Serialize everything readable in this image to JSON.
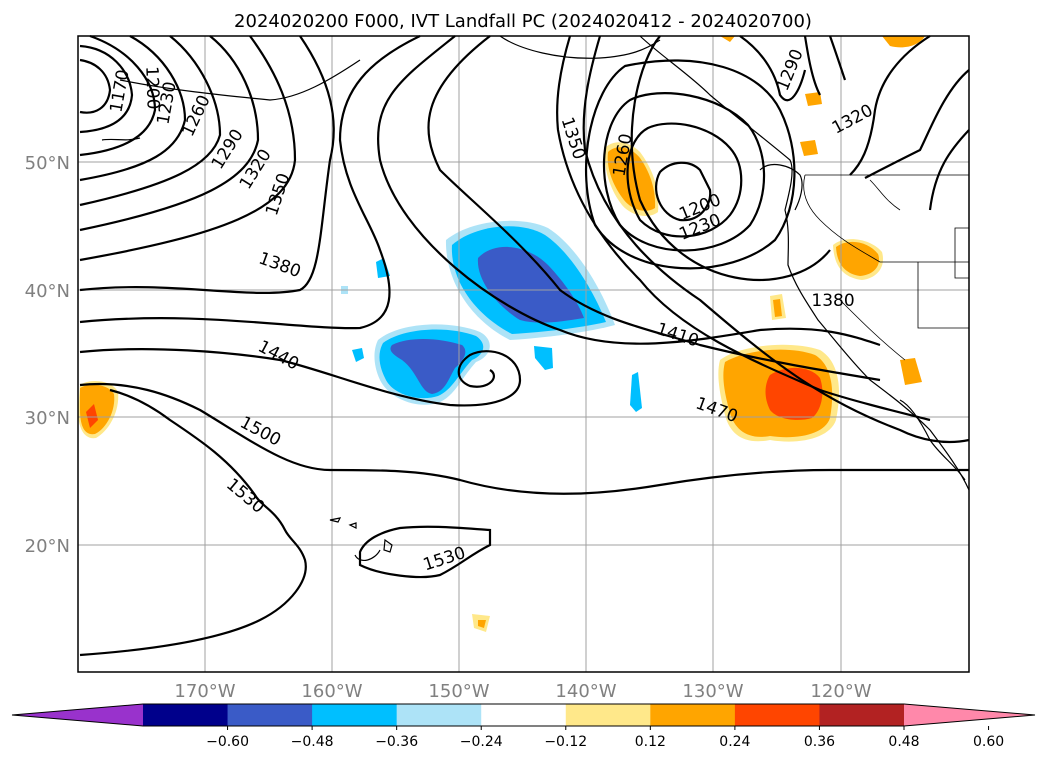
{
  "map": {
    "title": "2024020200 F000, IVT Landfall PC (2024020412 - 2024020700)",
    "lat_labels": [
      "50°N",
      "40°N",
      "30°N",
      "20°N"
    ],
    "lon_labels": [
      "170°W",
      "160°W",
      "150°W",
      "140°W",
      "130°W",
      "120°W"
    ],
    "contour_labels": [
      "1170",
      "1200",
      "1230",
      "1260",
      "1290",
      "1320",
      "1350",
      "1380",
      "1440",
      "1500",
      "1530",
      "1350",
      "1260",
      "1200",
      "1230",
      "1290",
      "1320",
      "1380",
      "1410",
      "1470",
      "1530"
    ]
  },
  "colorbar": {
    "ticks": [
      "−0.60",
      "−0.48",
      "−0.36",
      "−0.24",
      "−0.12",
      "0.12",
      "0.24",
      "0.36",
      "0.48",
      "0.60"
    ],
    "colors": [
      "#9932CC",
      "#00008B",
      "#3A5BC7",
      "#00BFFF",
      "#ADE3F7",
      "#FFFFFF",
      "#FFE88A",
      "#FFA500",
      "#FF4500",
      "#B22222",
      "#FF88AA"
    ]
  }
}
